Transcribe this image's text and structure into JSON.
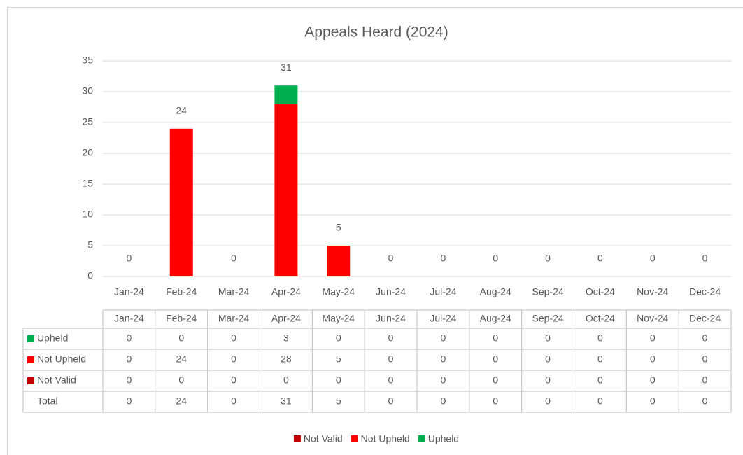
{
  "chart_data": {
    "type": "bar",
    "stacked": true,
    "title": "Appeals Heard (2024)",
    "categories": [
      "Jan-24",
      "Feb-24",
      "Mar-24",
      "Apr-24",
      "May-24",
      "Jun-24",
      "Jul-24",
      "Aug-24",
      "Sep-24",
      "Oct-24",
      "Nov-24",
      "Dec-24"
    ],
    "series": [
      {
        "name": "Not Valid",
        "color": "#c00000",
        "values": [
          0,
          0,
          0,
          0,
          0,
          0,
          0,
          0,
          0,
          0,
          0,
          0
        ]
      },
      {
        "name": "Not Upheld",
        "color": "#ff0000",
        "values": [
          0,
          24,
          0,
          28,
          5,
          0,
          0,
          0,
          0,
          0,
          0,
          0
        ]
      },
      {
        "name": "Upheld",
        "color": "#00b050",
        "values": [
          0,
          0,
          0,
          3,
          0,
          0,
          0,
          0,
          0,
          0,
          0,
          0
        ]
      }
    ],
    "totals": {
      "name": "Total",
      "values": [
        0,
        24,
        0,
        31,
        5,
        0,
        0,
        0,
        0,
        0,
        0,
        0
      ]
    },
    "ylim": [
      0,
      35
    ],
    "yticks": [
      0,
      5,
      10,
      15,
      20,
      25,
      30,
      35
    ],
    "grid": true,
    "legend": "bottom"
  }
}
